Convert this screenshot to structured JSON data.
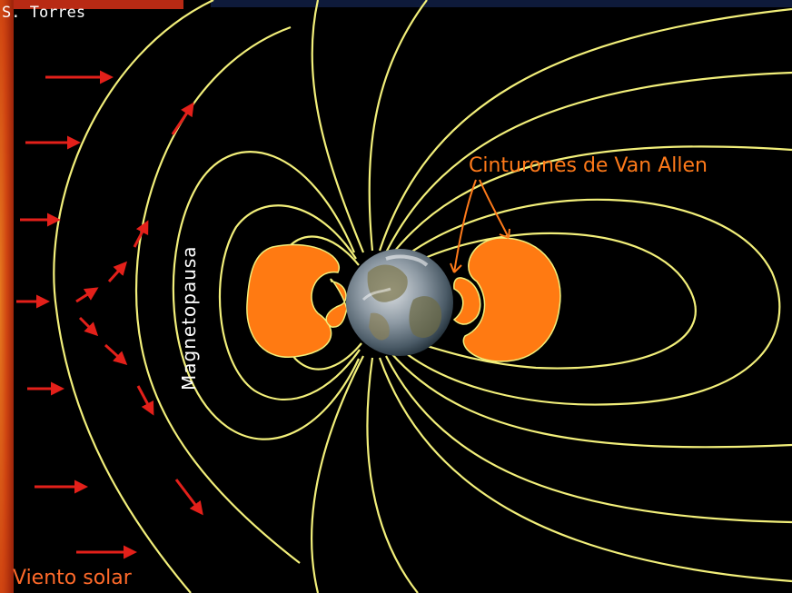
{
  "credit": "S. Torres",
  "labels": {
    "van_allen_belts": "Cinturones de Van Allen",
    "magnetopause": "Magnetopausa",
    "solar_wind": "Viento solar"
  },
  "colors": {
    "background": "#000000",
    "field_lines": "#f2ef7a",
    "belts": "#ff7a12",
    "arrows": "#e3201a",
    "sun_edge": "#c93d10",
    "label_orange": "#ff7a1a",
    "label_white": "#ffffff"
  },
  "icons": [
    "earth-globe",
    "sun-surface",
    "solar-wind-arrow"
  ]
}
